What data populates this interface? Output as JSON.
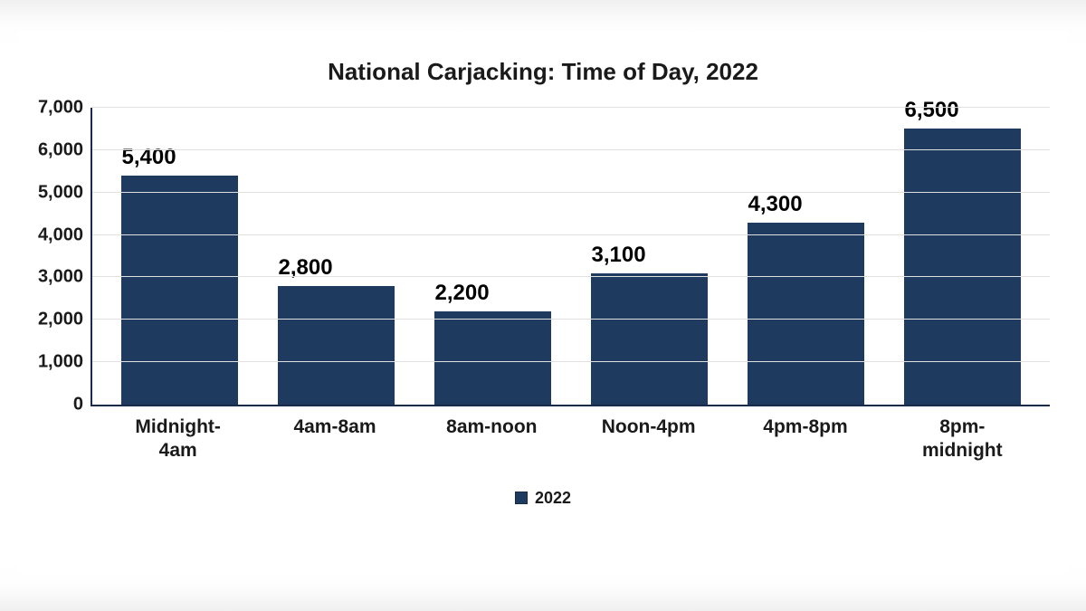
{
  "chart": {
    "type": "bar",
    "title": "National Carjacking: Time of Day, 2022",
    "title_fontsize": 26,
    "categories": [
      "Midnight-\n4am",
      "4am-8am",
      "8am-noon",
      "Noon-4pm",
      "4pm-8pm",
      "8pm-\nmidnight"
    ],
    "values": [
      5400,
      2800,
      2200,
      3100,
      4300,
      6500
    ],
    "value_labels": [
      "5,400",
      "2,800",
      "2,200",
      "3,100",
      "4,300",
      "6,500"
    ],
    "bar_color": "#1f3a5f",
    "bar_width": 0.74,
    "ylim": [
      0,
      7000
    ],
    "ytick_step": 1000,
    "ytick_labels": [
      "0",
      "1,000",
      "2,000",
      "3,000",
      "4,000",
      "5,000",
      "6,000",
      "7,000"
    ],
    "grid_color": "#e0e0e0",
    "axis_color": "#1a2a4a",
    "background_color": "#ffffff",
    "tick_fontsize": 20,
    "data_label_fontsize": 24,
    "x_label_fontsize": 21,
    "legend": {
      "label": "2022",
      "swatch_color": "#1f3a5f",
      "fontsize": 18,
      "position": "bottom-center"
    }
  }
}
